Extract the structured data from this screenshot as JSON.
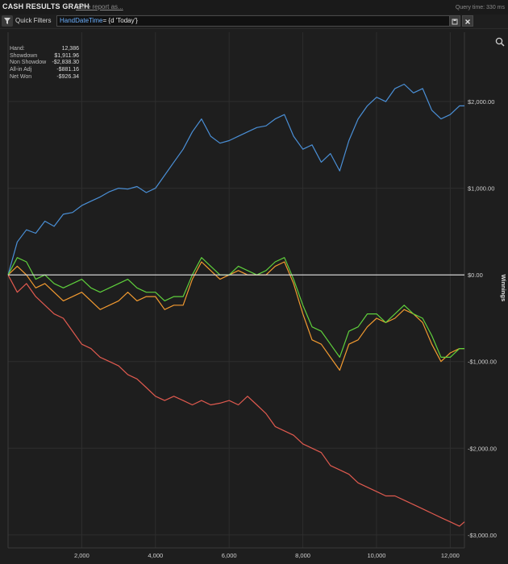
{
  "app": {
    "title": "CASH RESULTS GRAPH",
    "save_report": "Save report as...",
    "query_time": "Query time: 330 ms"
  },
  "filters": {
    "label": "Quick Filters",
    "expression_key": "HandDateTime",
    "expression_rest": "= {d 'Today'}"
  },
  "stats": [
    {
      "label": "Hand:",
      "value": "12,386"
    },
    {
      "label": "Showdown",
      "value": "$1,911.96"
    },
    {
      "label": "Non Showdow",
      "value": "-$2,838.30"
    },
    {
      "label": "All-in Adj",
      "value": "-$881.16"
    },
    {
      "label": "Net Won",
      "value": "-$926.34"
    }
  ],
  "colors": {
    "showdown": "#4a8fd6",
    "non_showdown": "#e05a4f",
    "allin_adj": "#f29a30",
    "net_won": "#5fd03c",
    "zero": "#e6e6e6",
    "grid": "#2e2e2e"
  },
  "icons": {
    "filter": "filter-icon",
    "save": "save-icon",
    "clear": "close-icon",
    "zoom": "magnify-icon"
  },
  "chart_data": {
    "type": "line",
    "ylabel": "Winnings",
    "xlabel": "",
    "xlim": [
      0,
      12386
    ],
    "ylim": [
      -3150,
      2800
    ],
    "xticks": [
      2000,
      4000,
      6000,
      8000,
      10000,
      12000
    ],
    "xtick_labels": [
      "2,000",
      "4,000",
      "6,000",
      "8,000",
      "10,000",
      "12,000"
    ],
    "yticks": [
      2000,
      1000,
      0,
      -1000,
      -2000,
      -3000
    ],
    "ytick_labels": [
      "$2,000.00",
      "$1,000.00",
      "$0.00",
      "-$1,000.00",
      "-$2,000.00",
      "-$3,000.00"
    ],
    "x": [
      0,
      250,
      500,
      750,
      1000,
      1250,
      1500,
      1750,
      2000,
      2250,
      2500,
      2750,
      3000,
      3250,
      3500,
      3750,
      4000,
      4250,
      4500,
      4750,
      5000,
      5250,
      5500,
      5750,
      6000,
      6250,
      6500,
      6750,
      7000,
      7250,
      7500,
      7750,
      8000,
      8250,
      8500,
      8750,
      9000,
      9250,
      9500,
      9750,
      10000,
      10250,
      10500,
      10750,
      11000,
      11250,
      11500,
      11750,
      12000,
      12250,
      12386
    ],
    "series": [
      {
        "key": "showdown",
        "values": [
          0,
          380,
          520,
          480,
          620,
          560,
          700,
          720,
          800,
          850,
          900,
          960,
          1000,
          990,
          1020,
          950,
          1000,
          1150,
          1300,
          1450,
          1650,
          1800,
          1600,
          1520,
          1550,
          1600,
          1650,
          1700,
          1720,
          1800,
          1850,
          1600,
          1450,
          1500,
          1300,
          1400,
          1200,
          1550,
          1800,
          1950,
          2050,
          2000,
          2150,
          2200,
          2100,
          2150,
          1900,
          1800,
          1850,
          1950,
          1950
        ]
      },
      {
        "key": "non_showdown",
        "values": [
          0,
          -200,
          -100,
          -250,
          -350,
          -450,
          -500,
          -650,
          -800,
          -850,
          -950,
          -1000,
          -1050,
          -1150,
          -1200,
          -1300,
          -1400,
          -1450,
          -1400,
          -1450,
          -1500,
          -1450,
          -1500,
          -1480,
          -1450,
          -1500,
          -1400,
          -1500,
          -1600,
          -1750,
          -1800,
          -1850,
          -1950,
          -2000,
          -2050,
          -2200,
          -2250,
          -2300,
          -2400,
          -2450,
          -2500,
          -2550,
          -2550,
          -2600,
          -2650,
          -2700,
          -2750,
          -2800,
          -2850,
          -2900,
          -2850
        ]
      },
      {
        "key": "allin_adj",
        "values": [
          0,
          100,
          0,
          -150,
          -100,
          -200,
          -300,
          -250,
          -200,
          -300,
          -400,
          -350,
          -300,
          -200,
          -300,
          -250,
          -250,
          -400,
          -350,
          -350,
          -50,
          150,
          50,
          -50,
          0,
          50,
          0,
          0,
          0,
          100,
          150,
          -100,
          -450,
          -750,
          -800,
          -950,
          -1100,
          -800,
          -750,
          -600,
          -500,
          -550,
          -500,
          -400,
          -450,
          -550,
          -800,
          -1000,
          -900,
          -850,
          -850
        ]
      },
      {
        "key": "net_won",
        "values": [
          0,
          200,
          150,
          -50,
          0,
          -100,
          -150,
          -100,
          -50,
          -150,
          -200,
          -150,
          -100,
          -50,
          -150,
          -200,
          -200,
          -300,
          -250,
          -250,
          0,
          200,
          100,
          0,
          0,
          100,
          50,
          0,
          50,
          150,
          200,
          -50,
          -350,
          -600,
          -650,
          -800,
          -950,
          -650,
          -600,
          -450,
          -450,
          -550,
          -450,
          -350,
          -450,
          -500,
          -700,
          -950,
          -950,
          -850,
          -850
        ]
      }
    ]
  }
}
